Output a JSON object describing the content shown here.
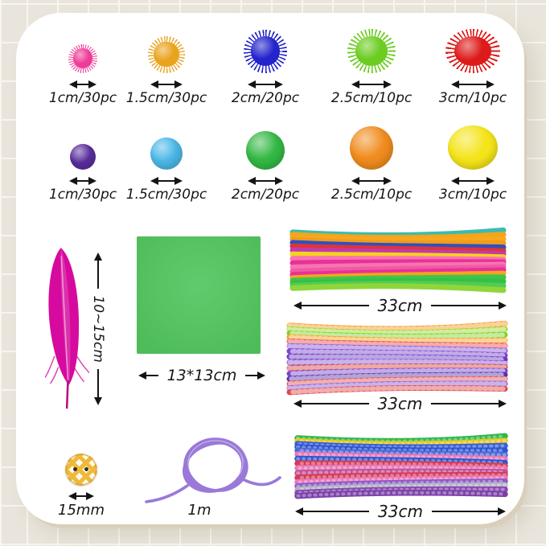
{
  "page": {
    "tile_color": "#eae5dc",
    "grout_color": "#f8f5f0",
    "card_color": "#ffffff",
    "text_color": "#161616"
  },
  "pom_rows": {
    "glitter": {
      "items": [
        {
          "name": "pink glitter pom pom",
          "color": "#ee3d98",
          "label": "1cm/30pc"
        },
        {
          "name": "gold glitter pom pom",
          "color": "#e9a31e",
          "label": "1.5cm/30pc"
        },
        {
          "name": "blue glitter pom pom",
          "color": "#2424cc",
          "label": "2cm/20pc"
        },
        {
          "name": "green glitter pom pom",
          "color": "#6ccc20",
          "label": "2.5cm/10pc"
        },
        {
          "name": "red glitter pom pom",
          "color": "#dd1a1a",
          "label": "3cm/10pc"
        }
      ]
    },
    "plain": {
      "items": [
        {
          "name": "purple pom pom",
          "color": "#5a2f9e",
          "label": "1cm/30pc"
        },
        {
          "name": "light blue pom pom",
          "color": "#4cb8e8",
          "label": "1.5cm/30pc"
        },
        {
          "name": "green pom pom",
          "color": "#33b844",
          "label": "2cm/20pc"
        },
        {
          "name": "orange pom pom",
          "color": "#f08c1e",
          "label": "2.5cm/10pc"
        },
        {
          "name": "yellow pom pom",
          "color": "#f4e41a",
          "label": "3cm/10pc"
        }
      ]
    }
  },
  "feather": {
    "color": "#d60a9e",
    "label": "10~15cm"
  },
  "paper": {
    "color": "#4fbc5a",
    "highlight": "#60cb6c",
    "label": "13*13cm"
  },
  "bundles": [
    {
      "style": "solid",
      "label": "33cm",
      "strands": [
        "#3bbcb0",
        "#f5a41c",
        "#f7a81e",
        "#f29c18",
        "#2b50c8",
        "#e03434",
        "#c03ab0",
        "#f5d21c",
        "#f874b0",
        "#e8309a",
        "#f874b0",
        "#ef5aa4",
        "#e8309a",
        "#f5a41c",
        "#3fc44f",
        "#35c045",
        "#52cc52",
        "#8fd63a"
      ]
    },
    {
      "style": "striped",
      "label": "33cm",
      "strands": [
        "#f59a1e",
        "#9ed62a",
        "#7ed32a",
        "#f5a01e",
        "#e84848",
        "#8a55d8",
        "#7a46cc",
        "#6a3ac0",
        "#8a55d8",
        "#d84040",
        "#7a46cc",
        "#5a32a8",
        "#e05050",
        "#8a55d8",
        "#e04848"
      ]
    },
    {
      "style": "tinsel",
      "label": "33cm",
      "strands": [
        "#2eb84c",
        "#e8c81e",
        "#3a60d8",
        "#2f55d0",
        "#4a6ad8",
        "#e878b8",
        "#2f55d0",
        "#d83a55",
        "#e878b8",
        "#c05098",
        "#d83a55",
        "#e878b8",
        "#8f58c8",
        "#b0b6c4",
        "#8a48b0",
        "#7a3fa8"
      ]
    }
  ],
  "button": {
    "color": "#efb93a",
    "label": "15mm"
  },
  "cord": {
    "color": "#9a79d8",
    "label": "1m"
  }
}
